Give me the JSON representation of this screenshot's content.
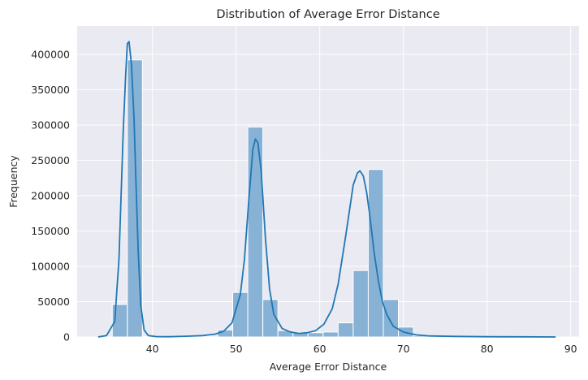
{
  "chart_data": {
    "type": "bar",
    "title": "Distribution of Average Error Distance",
    "xlabel": "Average Error Distance",
    "ylabel": "Frequency",
    "xlim": [
      31,
      91
    ],
    "ylim": [
      0,
      440000
    ],
    "xticks": [
      40,
      50,
      60,
      70,
      80,
      90
    ],
    "yticks": [
      0,
      50000,
      100000,
      150000,
      200000,
      250000,
      300000,
      350000,
      400000
    ],
    "grid": true,
    "background": "#eaeaf2",
    "bar_color": "#83afd3",
    "line_color": "#1f77b4",
    "bins": [
      {
        "x0": 35.2,
        "x1": 37.0,
        "count": 46000
      },
      {
        "x0": 37.0,
        "x1": 38.8,
        "count": 392000
      },
      {
        "x0": 38.8,
        "x1": 40.6,
        "count": 500
      },
      {
        "x0": 47.8,
        "x1": 49.6,
        "count": 10000
      },
      {
        "x0": 49.6,
        "x1": 51.4,
        "count": 63000
      },
      {
        "x0": 51.4,
        "x1": 53.2,
        "count": 297000
      },
      {
        "x0": 53.2,
        "x1": 55.0,
        "count": 53000
      },
      {
        "x0": 55.0,
        "x1": 56.8,
        "count": 9000
      },
      {
        "x0": 56.8,
        "x1": 58.6,
        "count": 6000
      },
      {
        "x0": 58.6,
        "x1": 60.4,
        "count": 6000
      },
      {
        "x0": 60.4,
        "x1": 62.2,
        "count": 7000
      },
      {
        "x0": 62.2,
        "x1": 64.0,
        "count": 20000
      },
      {
        "x0": 64.0,
        "x1": 65.8,
        "count": 94000
      },
      {
        "x0": 65.8,
        "x1": 67.6,
        "count": 237000
      },
      {
        "x0": 67.6,
        "x1": 69.4,
        "count": 53000
      },
      {
        "x0": 69.4,
        "x1": 71.2,
        "count": 14000
      },
      {
        "x0": 71.2,
        "x1": 73.0,
        "count": 2000
      }
    ],
    "kde": {
      "x": [
        33.5,
        34.5,
        35.5,
        36.0,
        36.5,
        36.8,
        37.0,
        37.2,
        37.5,
        37.8,
        38.0,
        38.3,
        38.6,
        39.0,
        39.5,
        40.5,
        42,
        44,
        46,
        47.5,
        48.5,
        49.5,
        50.5,
        51.0,
        51.5,
        52.0,
        52.3,
        52.6,
        53.0,
        53.5,
        54.0,
        54.5,
        55.5,
        56.5,
        57.5,
        58.5,
        59.5,
        60.5,
        61.5,
        62.2,
        63.0,
        63.5,
        64.0,
        64.5,
        64.8,
        65.2,
        65.6,
        66.0,
        66.5,
        67.0,
        67.5,
        68.0,
        68.8,
        70,
        71.5,
        73,
        76,
        80,
        84,
        88.2
      ],
      "y": [
        0,
        2000,
        22000,
        110000,
        290000,
        370000,
        415000,
        418000,
        385000,
        310000,
        230000,
        120000,
        45000,
        10000,
        2000,
        500,
        400,
        1000,
        2000,
        4000,
        8000,
        20000,
        60000,
        110000,
        190000,
        265000,
        280000,
        275000,
        235000,
        140000,
        68000,
        32000,
        12000,
        7000,
        5000,
        6000,
        9000,
        18000,
        40000,
        75000,
        135000,
        175000,
        215000,
        232000,
        235000,
        228000,
        205000,
        170000,
        120000,
        80000,
        50000,
        32000,
        15000,
        7000,
        3000,
        1500,
        800,
        400,
        200,
        0
      ]
    }
  }
}
